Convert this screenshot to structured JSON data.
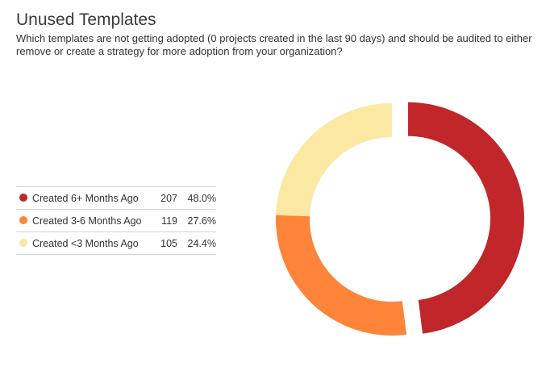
{
  "header": {
    "title": "Unused Templates",
    "subtitle": "Which templates are not getting adopted (0 projects created in the last 90 days) and should be audited to either remove or create a strategy for more adoption from your organization?"
  },
  "chart_data": {
    "type": "pie",
    "variant": "donut",
    "start_angle_deg": 0,
    "direction": "clockwise",
    "selected_slice": "Created 6+ Months Ago",
    "slices": [
      {
        "label": "Created 6+ Months Ago",
        "count": 207,
        "percent_label": "48.0%",
        "value": 48.0,
        "color": "#c0262a"
      },
      {
        "label": "Created 3-6 Months Ago",
        "count": 119,
        "percent_label": "27.6%",
        "value": 27.6,
        "color": "#fd8438"
      },
      {
        "label": "Created <3 Months Ago",
        "count": 105,
        "percent_label": "24.4%",
        "value": 24.4,
        "color": "#fbe8a3"
      }
    ]
  }
}
